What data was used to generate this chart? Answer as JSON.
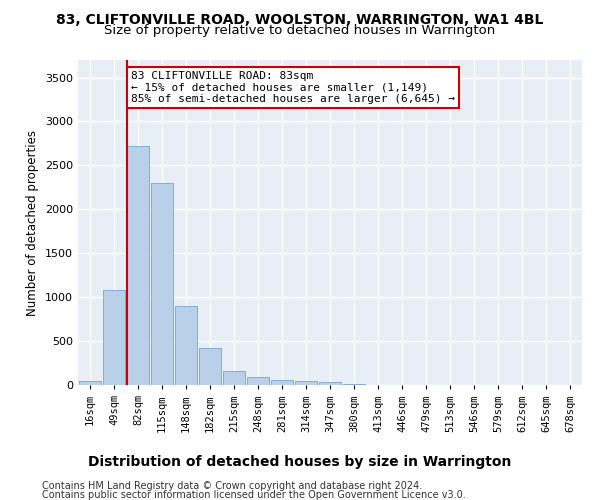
{
  "title1": "83, CLIFTONVILLE ROAD, WOOLSTON, WARRINGTON, WA1 4BL",
  "title2": "Size of property relative to detached houses in Warrington",
  "xlabel": "Distribution of detached houses by size in Warrington",
  "ylabel": "Number of detached properties",
  "footer1": "Contains HM Land Registry data © Crown copyright and database right 2024.",
  "footer2": "Contains public sector information licensed under the Open Government Licence v3.0.",
  "bar_labels": [
    "16sqm",
    "49sqm",
    "82sqm",
    "115sqm",
    "148sqm",
    "182sqm",
    "215sqm",
    "248sqm",
    "281sqm",
    "314sqm",
    "347sqm",
    "380sqm",
    "413sqm",
    "446sqm",
    "479sqm",
    "513sqm",
    "546sqm",
    "579sqm",
    "612sqm",
    "645sqm",
    "678sqm"
  ],
  "bar_values": [
    50,
    1080,
    2720,
    2300,
    900,
    420,
    155,
    90,
    55,
    40,
    30,
    10,
    5,
    0,
    0,
    0,
    0,
    0,
    0,
    0,
    0
  ],
  "bar_color": "#b8d0e8",
  "bar_edge_color": "#6699cc",
  "vline_index": 2,
  "vline_color": "#cc0000",
  "annotation_line1": "83 CLIFTONVILLE ROAD: 83sqm",
  "annotation_line2": "← 15% of detached houses are smaller (1,149)",
  "annotation_line3": "85% of semi-detached houses are larger (6,645) →",
  "annotation_box_color": "#ffffff",
  "annotation_box_edge": "#cc0000",
  "ylim": [
    0,
    3700
  ],
  "yticks": [
    0,
    500,
    1000,
    1500,
    2000,
    2500,
    3000,
    3500
  ],
  "background_color": "#e8eef5",
  "grid_color": "#ffffff",
  "title1_fontsize": 10,
  "title2_fontsize": 9.5,
  "xlabel_fontsize": 10,
  "ylabel_fontsize": 8.5,
  "tick_fontsize": 7.5,
  "ytick_fontsize": 8,
  "footer_fontsize": 7,
  "annot_fontsize": 8
}
